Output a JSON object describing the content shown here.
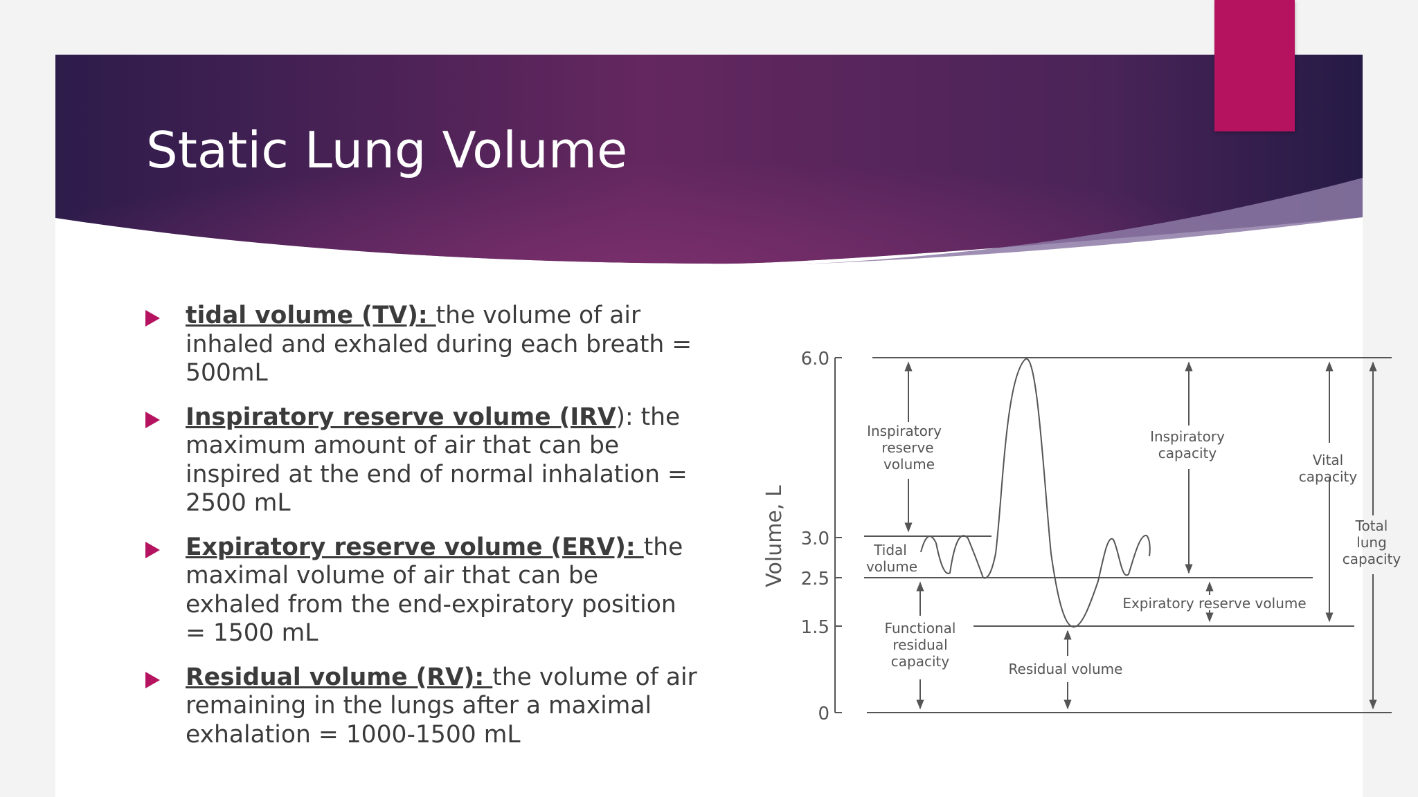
{
  "slide": {
    "title": "Static Lung Volume",
    "colors": {
      "banner_dark": "#2b1a4a",
      "banner_mid": "#6a2a64",
      "accent": "#b5135f"
    }
  },
  "bullets": [
    {
      "term": "tidal volume (TV): ",
      "text": " the volume of air inhaled and exhaled during each breath = 500mL"
    },
    {
      "term": "Inspiratory reserve volume (IRV",
      "text": "): the maximum amount of air that can be inspired at the end of normal inhalation = 2500 mL"
    },
    {
      "term": "Expiratory reserve volume (ERV): ",
      "text": "the maximal volume of air that can be exhaled from the end-expiratory position = 1500 mL"
    },
    {
      "term": "Residual volume (RV): ",
      "text": "the volume of air remaining in the lungs after a maximal exhalation = 1000-1500 mL"
    }
  ],
  "diagram": {
    "y_axis_label": "Volume, L",
    "y_ticks": [
      "6.0",
      "3.0",
      "2.5",
      "1.5",
      "0"
    ],
    "labels": {
      "irv": [
        "Inspiratory",
        "reserve",
        "volume"
      ],
      "tv": [
        "Tidal",
        "volume"
      ],
      "frc": [
        "Functional",
        "residual",
        "capacity"
      ],
      "rv": "Residual volume",
      "ic": [
        "Inspiratory",
        "capacity"
      ],
      "erv": "Expiratory reserve volume",
      "vc": [
        "Vital",
        "capacity"
      ],
      "tlc": [
        "Total",
        "lung",
        "capacity"
      ]
    }
  }
}
